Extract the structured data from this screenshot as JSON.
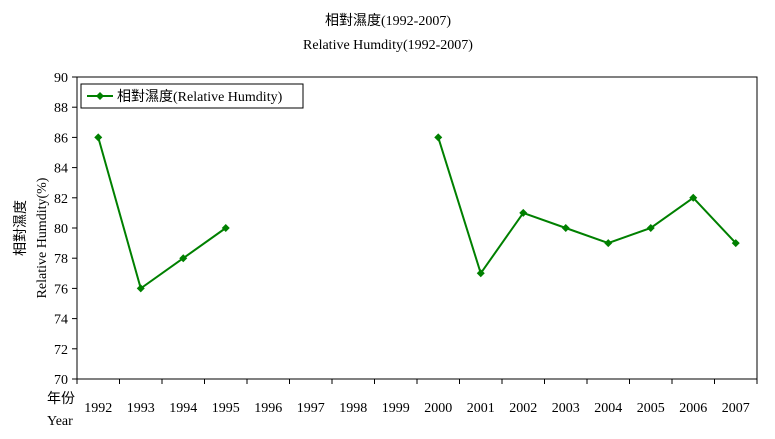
{
  "chart_data": {
    "type": "line",
    "title": "相對濕度(1992-2007)",
    "subtitle": "Relative Humdity(1992-2007)",
    "ylabel_zh": "相對濕度",
    "ylabel_en": "Relative Humdity(%)",
    "xlabel_zh": "年份",
    "xlabel_en": "Year",
    "categories": [
      "1992",
      "1993",
      "1994",
      "1995",
      "1996",
      "1997",
      "1998",
      "1999",
      "2000",
      "2001",
      "2002",
      "2003",
      "2004",
      "2005",
      "2006",
      "2007"
    ],
    "ylim": [
      70,
      90
    ],
    "yticks": [
      70,
      72,
      74,
      76,
      78,
      80,
      82,
      84,
      86,
      88,
      90
    ],
    "grid": false,
    "legend_position": "top-left",
    "series": [
      {
        "name": "相對濕度(Relative Humdity)",
        "color": "#008000",
        "marker": "diamond",
        "values": [
          86,
          76,
          78,
          80,
          null,
          null,
          null,
          null,
          86,
          77,
          81,
          80,
          79,
          80,
          82,
          79
        ]
      }
    ]
  }
}
